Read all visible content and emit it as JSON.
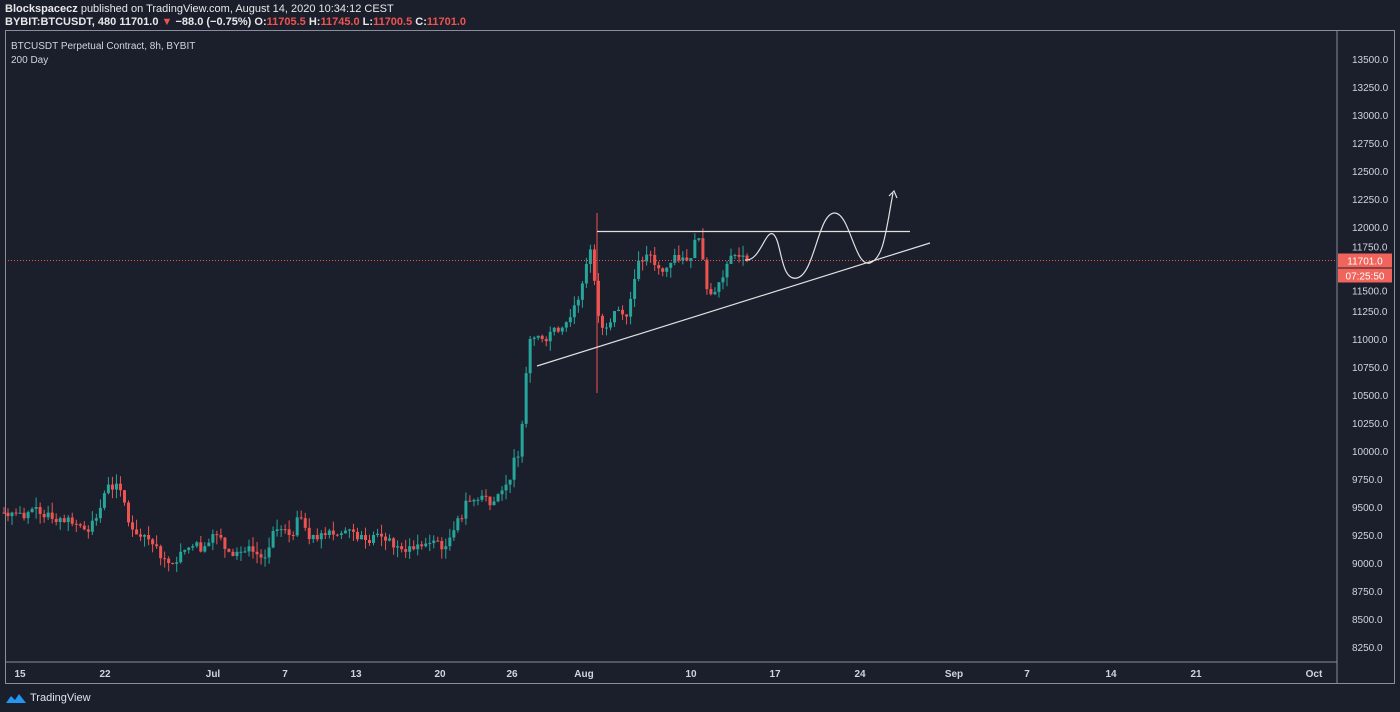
{
  "header": {
    "author": "Blockspacecz",
    "published": " published on TradingView.com, August 14, 2020 10:34:12 CEST",
    "symbol": "BYBIT:BTCUSDT, 480",
    "last": "11701.0",
    "change": "−88.0 (−0.75%)",
    "o_label": "O:",
    "o": "11705.5",
    "h_label": "H:",
    "h": "11745.0",
    "l_label": "L:",
    "l": "11700.5",
    "c_label": "C:",
    "c": "11701.0"
  },
  "legend": {
    "title": "BTCUSDT Perpetual Contract, 8h, BYBIT",
    "subtitle": "200 Day"
  },
  "price_axis": {
    "ticks": [
      "13500.0",
      "13250.0",
      "13000.0",
      "12750.0",
      "12500.0",
      "12250.0",
      "12000.0",
      "11750.0",
      "11500.0",
      "11250.0",
      "11000.0",
      "10750.0",
      "10500.0",
      "10250.0",
      "10000.0",
      "9750.0",
      "9500.0",
      "9250.0",
      "9000.0",
      "8750.0",
      "8500.0",
      "8250.0"
    ],
    "last_price_label": "11701.0",
    "countdown": "07:25:50"
  },
  "time_axis": {
    "labels": [
      "15",
      "22",
      "Jul",
      "7",
      "13",
      "20",
      "26",
      "Aug",
      "10",
      "17",
      "24",
      "Sep",
      "7",
      "14",
      "21",
      "Oct"
    ]
  },
  "branding": {
    "name": "TradingView"
  },
  "colors": {
    "up": "#26a69a",
    "down": "#ef5350",
    "bg": "#1b1f2c"
  },
  "chart_data": {
    "type": "candlestick",
    "interval": "8h",
    "start": "2020-06-14",
    "note": "daily closes, each rendered as 3 x 8h candles",
    "daily_close": [
      9450,
      9400,
      9500,
      9450,
      9400,
      9350,
      9300,
      9400,
      9700,
      9650,
      9300,
      9250,
      9150,
      9000,
      9100,
      9150,
      9150,
      9250,
      9100,
      9100,
      9100,
      9050,
      9300,
      9250,
      9400,
      9250,
      9250,
      9250,
      9300,
      9250,
      9250,
      9200,
      9150,
      9150,
      9150,
      9200,
      9150,
      9400,
      9550,
      9600,
      9550,
      9700,
      9950,
      11000,
      11000,
      11100,
      11150,
      11350,
      11800,
      11100,
      11250,
      11200,
      11700,
      11750,
      11600,
      11750,
      11700,
      11900,
      11400,
      11550,
      11750,
      11701
    ],
    "current_price": 11701.0,
    "drawings": [
      {
        "type": "horizontal-resistance",
        "price": 11960
      },
      {
        "type": "ascending-trendline",
        "from": {
          "date": "2020-07-28",
          "price": 10750
        },
        "to": {
          "date": "2020-08-29",
          "price": 11850
        }
      },
      {
        "type": "projection-path"
      }
    ]
  }
}
